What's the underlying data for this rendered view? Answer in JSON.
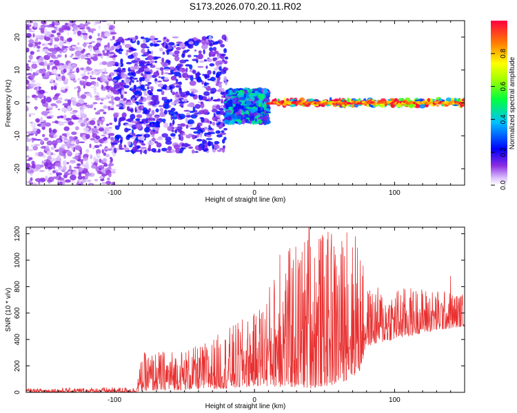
{
  "title": "S173.2026.070.20.11.R02",
  "chart_data": [
    {
      "type": "heatmap",
      "xlabel": "Height of straight line (km)",
      "ylabel": "Frequency (Hz)",
      "xlim": [
        -163,
        150
      ],
      "ylim": [
        -25,
        25
      ],
      "xticks": [
        -100,
        0,
        100
      ],
      "yticks": [
        -20,
        -10,
        0,
        10,
        20
      ],
      "xtick_labels": [
        "-100",
        "0",
        "100"
      ],
      "ytick_labels": [
        "-20",
        "-10",
        "0",
        "10",
        "20"
      ],
      "description_regions": [
        {
          "x_range": [
            -163,
            -100
          ],
          "freq_spread": [
            -25,
            25
          ],
          "amplitude": 0.08
        },
        {
          "x_range": [
            -100,
            -20
          ],
          "freq_spread": [
            -15,
            20
          ],
          "amplitude": 0.15
        },
        {
          "x_range": [
            -20,
            10
          ],
          "freq_spread": [
            -6,
            4
          ],
          "amplitude": 0.3
        },
        {
          "x_range": [
            10,
            150
          ],
          "freq_spread": [
            -1,
            1
          ],
          "amplitude": 0.8
        }
      ],
      "colorbar": {
        "label": "Normalized spectral amplitude",
        "range": [
          0.0,
          1.0
        ],
        "ticks": [
          0.0,
          0.2,
          0.4,
          0.6,
          0.8
        ],
        "tick_labels": [
          "0.0",
          "0.2",
          "0.4",
          "0.6",
          "0.8"
        ]
      }
    },
    {
      "type": "line",
      "xlabel": "Height of straight line (km)",
      "ylabel": "SNR (10 * v/v)",
      "xlim": [
        -163,
        150
      ],
      "ylim": [
        0,
        1250
      ],
      "xticks": [
        -100,
        0,
        100
      ],
      "yticks": [
        0,
        200,
        400,
        600,
        800,
        1000,
        1200
      ],
      "xtick_labels": [
        "-100",
        "0",
        "100"
      ],
      "ytick_labels": [
        "0",
        "200",
        "400",
        "600",
        "800",
        "1000",
        "1200"
      ],
      "color": "#e83030",
      "envelope": [
        {
          "x": -163,
          "low": 0,
          "high": 30
        },
        {
          "x": -85,
          "low": 0,
          "high": 40
        },
        {
          "x": -80,
          "low": 10,
          "high": 300
        },
        {
          "x": -40,
          "low": 20,
          "high": 350
        },
        {
          "x": -10,
          "low": 30,
          "high": 550
        },
        {
          "x": 0,
          "low": 50,
          "high": 600
        },
        {
          "x": 20,
          "low": 40,
          "high": 1050
        },
        {
          "x": 40,
          "low": 30,
          "high": 1250
        },
        {
          "x": 60,
          "low": 60,
          "high": 1200
        },
        {
          "x": 75,
          "low": 150,
          "high": 1150
        },
        {
          "x": 80,
          "low": 350,
          "high": 800
        },
        {
          "x": 120,
          "low": 450,
          "high": 800
        },
        {
          "x": 150,
          "low": 500,
          "high": 750
        }
      ],
      "peaks": [
        {
          "x": 18,
          "y": 1040
        },
        {
          "x": 39,
          "y": 1250
        },
        {
          "x": 46,
          "y": 1160
        },
        {
          "x": 55,
          "y": 1200
        },
        {
          "x": 66,
          "y": 1210
        },
        {
          "x": 72,
          "y": 1180
        },
        {
          "x": 140,
          "y": 880
        }
      ]
    }
  ]
}
